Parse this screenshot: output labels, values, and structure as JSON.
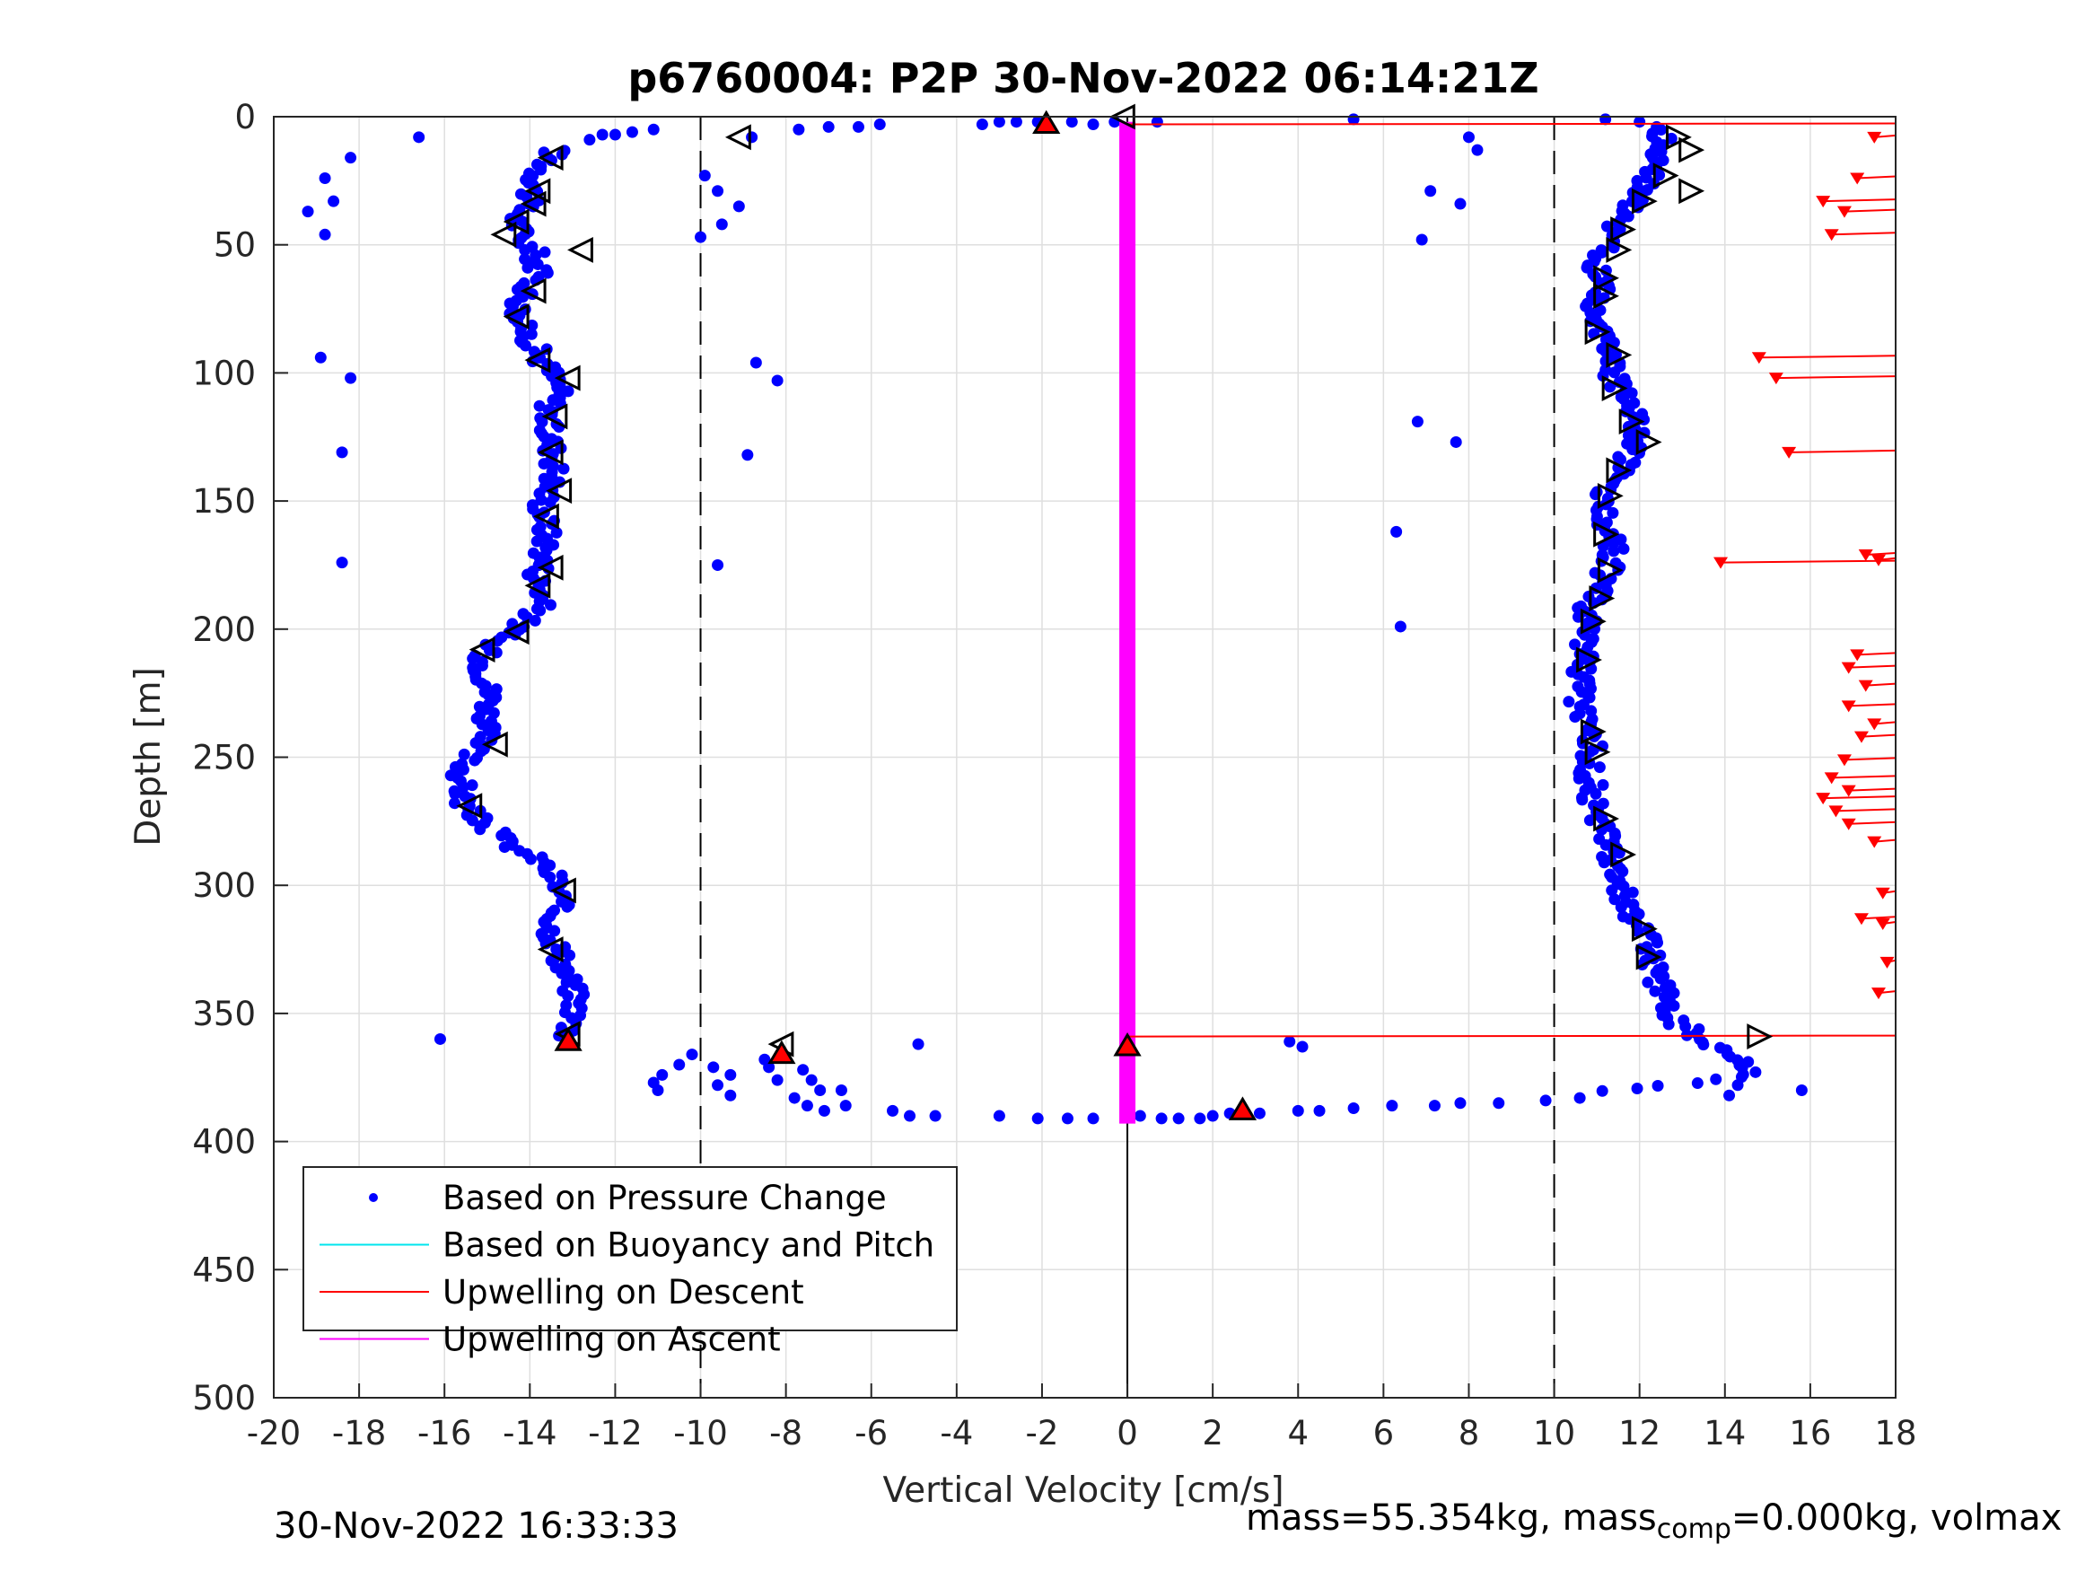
{
  "chart_data": {
    "type": "scatter",
    "title": "p6760004: P2P 30-Nov-2022 06:14:21Z",
    "xlabel": "Vertical Velocity [cm/s]",
    "ylabel": "Depth [m]",
    "xlim": [
      -20,
      18
    ],
    "ylim": [
      0,
      500
    ],
    "y_reversed": true,
    "grid": true,
    "xticks": [
      -20,
      -18,
      -16,
      -14,
      -12,
      -10,
      -8,
      -6,
      -4,
      -2,
      0,
      2,
      4,
      6,
      8,
      10,
      12,
      14,
      16,
      18
    ],
    "yticks": [
      0,
      50,
      100,
      150,
      200,
      250,
      300,
      350,
      400,
      450,
      500
    ],
    "reference_lines": {
      "dashed_x": [
        -10,
        10
      ],
      "solid_x": 0
    },
    "legend": {
      "location": "bottom-left",
      "entries": [
        {
          "label": "Based on Pressure Change",
          "color": "#0000ff",
          "marker": "dot"
        },
        {
          "label": "Based on Buoyancy and Pitch",
          "color": "#00e5ee",
          "marker": "line"
        },
        {
          "label": "Upwelling on Descent",
          "color": "#ff0000",
          "marker": "line"
        },
        {
          "label": "Upwelling on Ascent",
          "color": "#ff00ff",
          "marker": "line"
        }
      ]
    },
    "series": [
      {
        "name": "Based on Pressure Change",
        "color": "#0000ff",
        "descent_profile": [
          [
            -13.4,
            13
          ],
          [
            -13.5,
            16
          ],
          [
            -13.8,
            22
          ],
          [
            -13.9,
            28
          ],
          [
            -14.1,
            34
          ],
          [
            -14.3,
            40
          ],
          [
            -14.2,
            47
          ],
          [
            -13.9,
            53
          ],
          [
            -13.8,
            60
          ],
          [
            -14.0,
            66
          ],
          [
            -14.2,
            73
          ],
          [
            -14.3,
            79
          ],
          [
            -14.0,
            86
          ],
          [
            -13.8,
            93
          ],
          [
            -13.5,
            100
          ],
          [
            -13.3,
            106
          ],
          [
            -13.5,
            113
          ],
          [
            -13.6,
            120
          ],
          [
            -13.5,
            127
          ],
          [
            -13.4,
            133
          ],
          [
            -13.4,
            140
          ],
          [
            -13.6,
            147
          ],
          [
            -13.7,
            153
          ],
          [
            -13.6,
            160
          ],
          [
            -13.6,
            167
          ],
          [
            -13.7,
            173
          ],
          [
            -13.8,
            180
          ],
          [
            -13.7,
            187
          ],
          [
            -13.8,
            193
          ],
          [
            -14.4,
            200
          ],
          [
            -15.0,
            207
          ],
          [
            -15.1,
            214
          ],
          [
            -15.0,
            221
          ],
          [
            -14.9,
            228
          ],
          [
            -15.0,
            235
          ],
          [
            -15.1,
            242
          ],
          [
            -15.4,
            249
          ],
          [
            -15.6,
            256
          ],
          [
            -15.6,
            263
          ],
          [
            -15.5,
            270
          ],
          [
            -15.0,
            277
          ],
          [
            -14.5,
            284
          ],
          [
            -13.8,
            290
          ],
          [
            -13.4,
            297
          ],
          [
            -13.3,
            304
          ],
          [
            -13.4,
            311
          ],
          [
            -13.5,
            318
          ],
          [
            -13.3,
            325
          ],
          [
            -13.2,
            332
          ],
          [
            -13.0,
            340
          ],
          [
            -12.9,
            347
          ],
          [
            -13.0,
            353
          ],
          [
            -13.1,
            360
          ]
        ],
        "ascent_profile": [
          [
            11.2,
            380
          ],
          [
            14.6,
            375
          ],
          [
            14.3,
            368
          ],
          [
            13.5,
            360
          ],
          [
            12.9,
            354
          ],
          [
            12.7,
            347
          ],
          [
            12.5,
            340
          ],
          [
            12.3,
            333
          ],
          [
            12.2,
            325
          ],
          [
            12.1,
            318
          ],
          [
            11.8,
            311
          ],
          [
            11.6,
            304
          ],
          [
            11.5,
            297
          ],
          [
            11.4,
            290
          ],
          [
            11.3,
            283
          ],
          [
            11.0,
            276
          ],
          [
            10.9,
            269
          ],
          [
            10.9,
            262
          ],
          [
            10.8,
            255
          ],
          [
            10.9,
            248
          ],
          [
            10.8,
            241
          ],
          [
            10.7,
            234
          ],
          [
            10.6,
            227
          ],
          [
            10.6,
            220
          ],
          [
            10.7,
            213
          ],
          [
            10.7,
            206
          ],
          [
            10.8,
            199
          ],
          [
            10.8,
            192
          ],
          [
            11.0,
            185
          ],
          [
            11.2,
            178
          ],
          [
            11.4,
            171
          ],
          [
            11.3,
            164
          ],
          [
            11.2,
            157
          ],
          [
            11.2,
            150
          ],
          [
            11.3,
            143
          ],
          [
            11.6,
            136
          ],
          [
            11.8,
            129
          ],
          [
            11.9,
            122
          ],
          [
            11.8,
            115
          ],
          [
            11.6,
            108
          ],
          [
            11.4,
            101
          ],
          [
            11.4,
            94
          ],
          [
            11.2,
            87
          ],
          [
            11.0,
            80
          ],
          [
            11.0,
            73
          ],
          [
            11.1,
            66
          ],
          [
            11.0,
            59
          ],
          [
            11.1,
            52
          ],
          [
            11.3,
            45
          ],
          [
            11.6,
            38
          ],
          [
            12.0,
            31
          ],
          [
            12.2,
            24
          ],
          [
            12.4,
            17
          ],
          [
            12.5,
            10
          ],
          [
            12.4,
            4
          ]
        ],
        "surface_points": [
          [
            -11.1,
            5
          ],
          [
            -11.6,
            6
          ],
          [
            -12.0,
            7
          ],
          [
            -12.3,
            7
          ],
          [
            -12.6,
            9
          ],
          [
            -16.6,
            8
          ],
          [
            -18.2,
            16
          ],
          [
            -18.8,
            24
          ],
          [
            -18.6,
            33
          ],
          [
            -19.2,
            37
          ],
          [
            -18.8,
            46
          ],
          [
            -18.9,
            94
          ],
          [
            -18.2,
            102
          ],
          [
            -18.4,
            131
          ],
          [
            -18.4,
            174
          ],
          [
            -8.8,
            8
          ],
          [
            -7.7,
            5
          ],
          [
            -7.0,
            4
          ],
          [
            -6.3,
            4
          ],
          [
            -5.8,
            3
          ],
          [
            -3.4,
            3
          ],
          [
            -3.0,
            2
          ],
          [
            -2.6,
            2
          ],
          [
            -2.1,
            2
          ],
          [
            -1.3,
            2
          ],
          [
            -0.8,
            3
          ],
          [
            -0.3,
            2
          ],
          [
            0.7,
            2
          ],
          [
            5.3,
            1
          ],
          [
            8.0,
            8
          ],
          [
            8.2,
            13
          ],
          [
            -9.9,
            23
          ],
          [
            -9.6,
            29
          ],
          [
            -9.1,
            35
          ],
          [
            -9.5,
            42
          ],
          [
            -10.0,
            47
          ],
          [
            -8.7,
            96
          ],
          [
            -8.2,
            103
          ],
          [
            -8.9,
            132
          ],
          [
            -9.6,
            175
          ],
          [
            7.1,
            29
          ],
          [
            7.8,
            34
          ],
          [
            6.9,
            48
          ],
          [
            6.8,
            119
          ],
          [
            7.7,
            127
          ],
          [
            6.3,
            162
          ],
          [
            6.4,
            199
          ],
          [
            11.2,
            1
          ],
          [
            12.0,
            2
          ]
        ],
        "bottom_points": [
          [
            -10.2,
            366
          ],
          [
            -10.5,
            370
          ],
          [
            -10.9,
            374
          ],
          [
            -11.1,
            377
          ],
          [
            -11.0,
            380
          ],
          [
            -9.7,
            371
          ],
          [
            -9.3,
            374
          ],
          [
            -9.6,
            378
          ],
          [
            -9.3,
            382
          ],
          [
            -8.5,
            368
          ],
          [
            -8.4,
            371
          ],
          [
            -8.2,
            376
          ],
          [
            -7.6,
            372
          ],
          [
            -7.4,
            376
          ],
          [
            -7.2,
            380
          ],
          [
            -7.8,
            383
          ],
          [
            -7.5,
            386
          ],
          [
            -7.1,
            388
          ],
          [
            -6.6,
            386
          ],
          [
            -6.7,
            380
          ],
          [
            -5.5,
            388
          ],
          [
            -5.1,
            390
          ],
          [
            -4.5,
            390
          ],
          [
            -4.9,
            362
          ],
          [
            -3.0,
            390
          ],
          [
            -2.1,
            391
          ],
          [
            -1.4,
            391
          ],
          [
            -0.8,
            391
          ],
          [
            0.3,
            390
          ],
          [
            0.8,
            391
          ],
          [
            1.2,
            391
          ],
          [
            1.7,
            391
          ],
          [
            2.0,
            390
          ],
          [
            2.4,
            389
          ],
          [
            3.1,
            389
          ],
          [
            4.0,
            388
          ],
          [
            4.5,
            388
          ],
          [
            5.3,
            387
          ],
          [
            6.2,
            386
          ],
          [
            7.2,
            386
          ],
          [
            7.8,
            385
          ],
          [
            8.7,
            385
          ],
          [
            9.8,
            384
          ],
          [
            10.6,
            383
          ],
          [
            3.8,
            361
          ],
          [
            4.1,
            363
          ],
          [
            -16.1,
            360
          ],
          [
            14.3,
            378
          ],
          [
            14.1,
            382
          ],
          [
            15.8,
            380
          ]
        ]
      },
      {
        "name": "Upwelling on Descent",
        "color": "#ff0000",
        "marker": "downward triangles with horizontal lines to the right axis edge",
        "points": [
          [
            17.5,
            8
          ],
          [
            17.1,
            24
          ],
          [
            16.3,
            33
          ],
          [
            16.8,
            37
          ],
          [
            16.5,
            46
          ],
          [
            14.8,
            94
          ],
          [
            15.2,
            102
          ],
          [
            15.5,
            131
          ],
          [
            13.9,
            174
          ],
          [
            17.3,
            171
          ],
          [
            17.6,
            173
          ],
          [
            17.1,
            210
          ],
          [
            16.9,
            215
          ],
          [
            17.3,
            222
          ],
          [
            16.9,
            230
          ],
          [
            17.5,
            237
          ],
          [
            17.2,
            242
          ],
          [
            16.8,
            251
          ],
          [
            16.5,
            258
          ],
          [
            16.9,
            263
          ],
          [
            16.3,
            266
          ],
          [
            16.6,
            271
          ],
          [
            16.9,
            276
          ],
          [
            17.5,
            283
          ],
          [
            17.7,
            303
          ],
          [
            17.2,
            313
          ],
          [
            17.7,
            315
          ],
          [
            17.8,
            330
          ],
          [
            17.6,
            342
          ]
        ]
      },
      {
        "name": "Upwelling on Ascent",
        "color": "#ff00ff",
        "depth_range": [
          2,
          393
        ],
        "x": 0
      },
      {
        "name": "Based on Buoyancy and Pitch",
        "color": "#00e5ee",
        "points": []
      }
    ],
    "buoyancy_pitch_markers": {
      "descent": [
        [
          -13.5,
          16
        ],
        [
          -13.8,
          29
        ],
        [
          -13.9,
          34
        ],
        [
          -14.3,
          41
        ],
        [
          -14.6,
          46
        ],
        [
          -12.8,
          52
        ],
        [
          -13.9,
          68
        ],
        [
          -14.3,
          78
        ],
        [
          -13.8,
          95
        ],
        [
          -13.1,
          102
        ],
        [
          -13.4,
          117
        ],
        [
          -13.5,
          131
        ],
        [
          -13.3,
          146
        ],
        [
          -13.6,
          156
        ],
        [
          -13.5,
          176
        ],
        [
          -13.8,
          183
        ],
        [
          -14.3,
          201
        ],
        [
          -15.1,
          208
        ],
        [
          -14.8,
          245
        ],
        [
          -15.4,
          269
        ],
        [
          -13.2,
          302
        ],
        [
          -13.5,
          325
        ],
        [
          -13.1,
          358
        ],
        [
          -9.1,
          8
        ],
        [
          -0.1,
          0
        ],
        [
          -8.1,
          362
        ]
      ],
      "ascent": [
        [
          13.2,
          13
        ],
        [
          12.9,
          8
        ],
        [
          12.6,
          23
        ],
        [
          12.1,
          33
        ],
        [
          13.2,
          29
        ],
        [
          11.6,
          44
        ],
        [
          11.5,
          52
        ],
        [
          11.2,
          63
        ],
        [
          11.2,
          70
        ],
        [
          11.0,
          84
        ],
        [
          11.5,
          93
        ],
        [
          11.4,
          106
        ],
        [
          11.8,
          119
        ],
        [
          12.2,
          127
        ],
        [
          11.5,
          138
        ],
        [
          11.3,
          148
        ],
        [
          11.2,
          163
        ],
        [
          11.3,
          177
        ],
        [
          11.1,
          188
        ],
        [
          10.9,
          197
        ],
        [
          10.8,
          212
        ],
        [
          10.9,
          240
        ],
        [
          11.0,
          248
        ],
        [
          11.2,
          274
        ],
        [
          11.6,
          288
        ],
        [
          12.1,
          317
        ],
        [
          12.2,
          328
        ],
        [
          14.8,
          359
        ]
      ],
      "red_filled": [
        [
          -1.9,
          3
        ],
        [
          -13.1,
          361
        ],
        [
          -8.1,
          366
        ],
        [
          0.0,
          363
        ],
        [
          2.7,
          388
        ]
      ]
    },
    "descent_upwelling_lines": [
      [
        0.0,
        3
      ],
      [
        0.0,
        359
      ]
    ]
  },
  "footer": {
    "timestamp": "30-Nov-2022 16:33:33",
    "mass_prefix": "mass=55.354kg, mass",
    "mass_sub": "comp",
    "mass_suffix": "=0.000kg, volmax"
  }
}
